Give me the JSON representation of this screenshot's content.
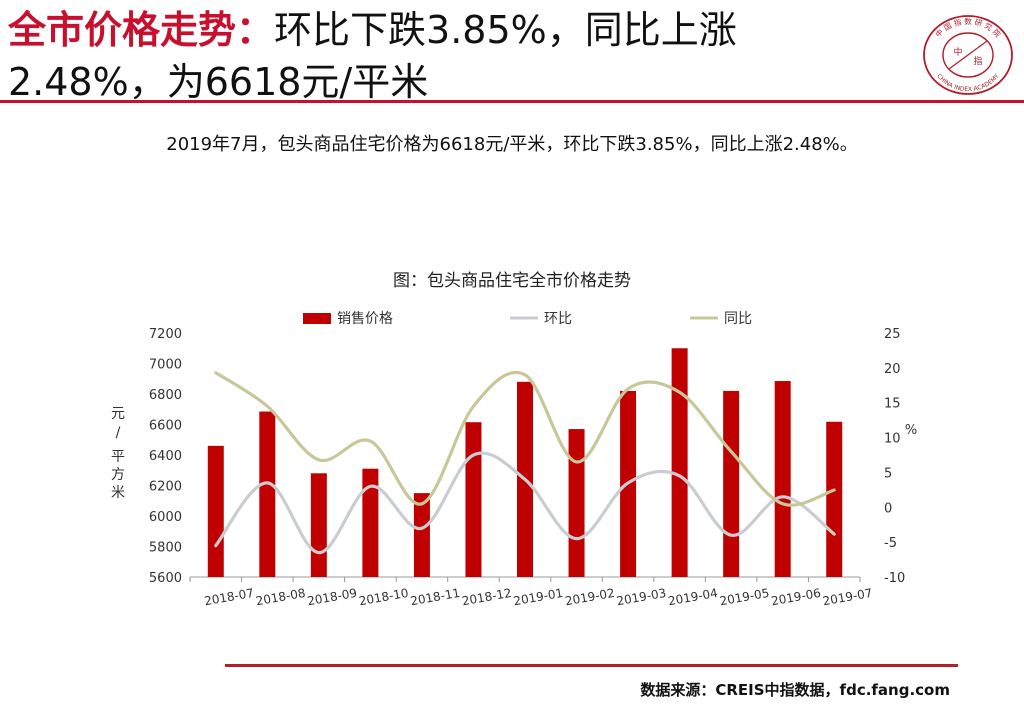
{
  "header": {
    "title_accent": "全市价格走势：",
    "title_rest": "环比下跌3.85%，同比上涨",
    "title_line2": "2.48%，为6618元/平米"
  },
  "summary": "2019年7月，包头商品住宅价格为6618元/平米，环比下跌3.85%，同比上涨2.48%。",
  "logo": {
    "top_text": "中国指数研究院",
    "bottom_text": "CHINA INDEX ACADEMY",
    "center": "中 指"
  },
  "chart_data": {
    "type": "bar",
    "title": "图：包头商品住宅全市价格走势",
    "categories": [
      "2018-07",
      "2018-08",
      "2018-09",
      "2018-10",
      "2018-11",
      "2018-12",
      "2019-01",
      "2019-02",
      "2019-03",
      "2019-04",
      "2019-05",
      "2019-06",
      "2019-07"
    ],
    "series": [
      {
        "name": "销售价格",
        "type": "bar",
        "axis": "left",
        "color": "#c00000",
        "values": [
          6460,
          6685,
          6280,
          6310,
          6150,
          6615,
          6880,
          6570,
          6820,
          7100,
          6820,
          6885,
          6618
        ]
      },
      {
        "name": "环比",
        "type": "line",
        "axis": "right",
        "color": "#c9cdd1",
        "values": [
          -5.5,
          3.5,
          -6.5,
          3.0,
          -3.0,
          7.5,
          4.0,
          -4.5,
          3.5,
          4.5,
          -4.0,
          1.5,
          -3.85
        ]
      },
      {
        "name": "同比",
        "type": "line",
        "axis": "right",
        "color": "#c8c79a",
        "values": [
          19.3,
          14.5,
          6.8,
          9.5,
          0.5,
          14.5,
          19.0,
          6.5,
          17.0,
          16.5,
          8.0,
          0.5,
          2.48
        ]
      }
    ],
    "ylabel": "元/平方米",
    "y2label": "%",
    "ylim": [
      5600,
      7200
    ],
    "y2lim": [
      -10,
      25
    ],
    "yticks": [
      "7200",
      "7000",
      "6800",
      "6600",
      "6400",
      "6200",
      "6000",
      "5800",
      "5600"
    ],
    "y2ticks": [
      "25",
      "20",
      "15",
      "10",
      "5",
      "0",
      "-5",
      "-10"
    ],
    "legend_position": "top"
  },
  "source": "数据来源：CREIS中指数据，fdc.fang.com",
  "colors": {
    "accent": "#c8102e",
    "bar": "#c00000",
    "mom": "#c9cdd1",
    "yoy": "#c8c79a"
  }
}
